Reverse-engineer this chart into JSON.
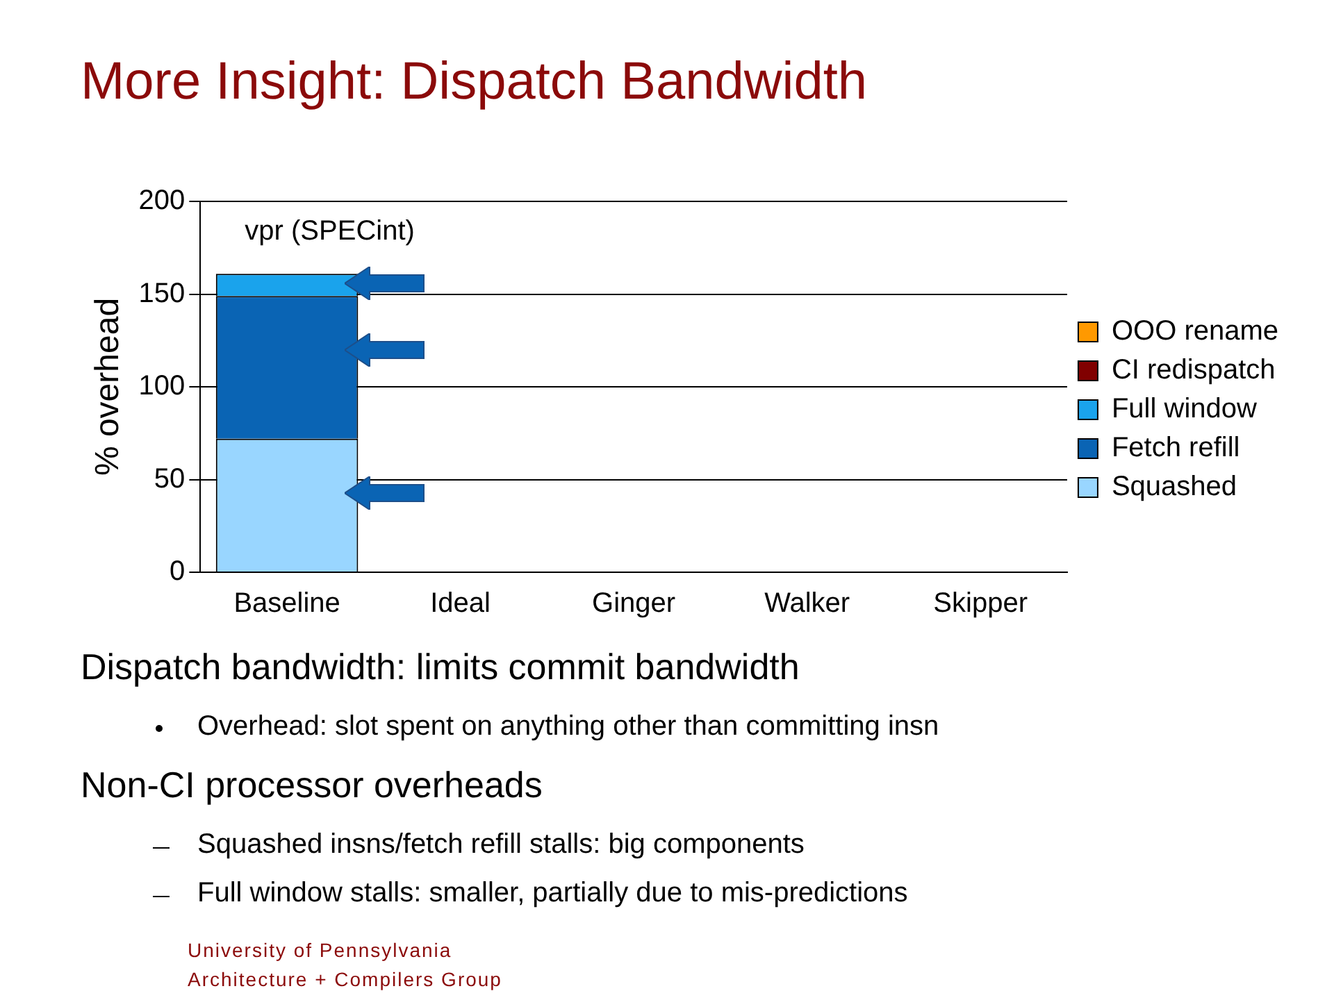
{
  "chart_data": {
    "type": "bar",
    "title": "More Insight: Dispatch Bandwidth",
    "subtitle": "vpr (SPECint)",
    "ylabel": "% overhead",
    "categories": [
      "Baseline",
      "Ideal",
      "Ginger",
      "Walker",
      "Skipper"
    ],
    "stacked": true,
    "series": [
      {
        "name": "Squashed",
        "color": "#99d6ff",
        "values": [
          72,
          null,
          null,
          null,
          null
        ]
      },
      {
        "name": "Fetch refill",
        "color": "#0a64b4",
        "values": [
          77,
          null,
          null,
          null,
          null
        ]
      },
      {
        "name": "Full window",
        "color": "#1aa3ec",
        "values": [
          12,
          null,
          null,
          null,
          null
        ]
      },
      {
        "name": "CI redispatch",
        "color": "#800000",
        "values": [
          null,
          null,
          null,
          null,
          null
        ]
      },
      {
        "name": "OOO rename",
        "color": "#ff9900",
        "values": [
          null,
          null,
          null,
          null,
          null
        ]
      }
    ],
    "ylim": [
      0,
      200
    ],
    "yticks": [
      0,
      50,
      100,
      150,
      200
    ],
    "grid": "y",
    "legend": "right",
    "annotations": [
      "Dispatch bandwidth: limits commit bandwidth",
      "Overhead: slot spent on anything other than committing insn",
      "Non-CI processor overheads",
      "Squashed insns/fetch refill stalls: big components",
      "Full window stalls: smaller, partially due to mis-predictions",
      "University of Pennsylvania",
      "Architecture + Compilers Group"
    ]
  }
}
